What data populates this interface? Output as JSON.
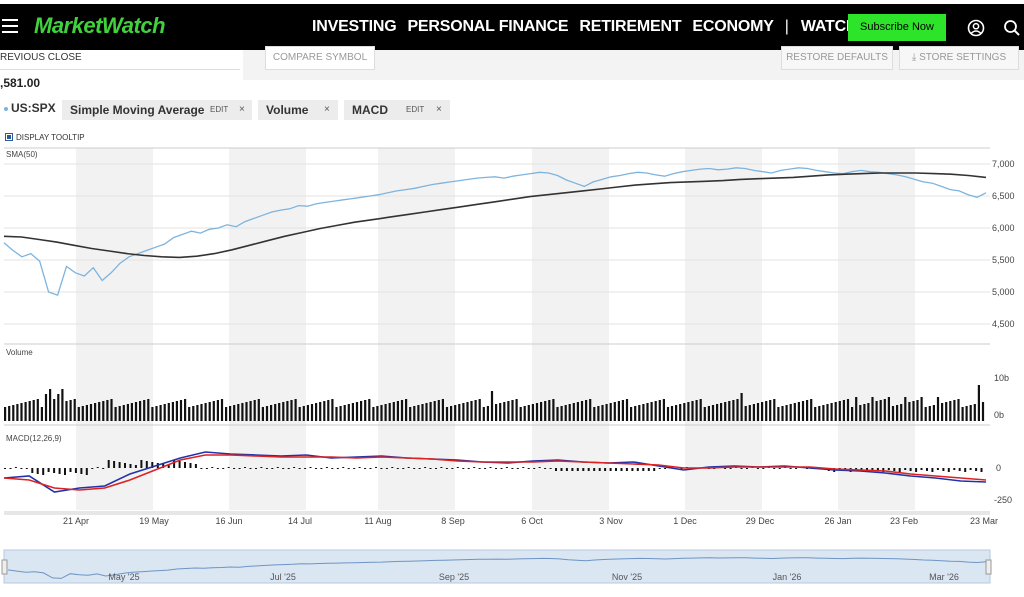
{
  "header": {
    "logo": "MarketWatch",
    "nav": [
      "INVESTING",
      "PERSONAL FINANCE",
      "RETIREMENT",
      "ECONOMY",
      "WATCHLIST"
    ],
    "nav_separator": "|",
    "subscribe": "Subscribe Now",
    "icons": [
      "menu-icon",
      "user-icon",
      "search-icon"
    ]
  },
  "quote": {
    "previous_close_label": "REVIOUS CLOSE",
    "previous_close_value": ",581.00"
  },
  "toolbar": {
    "compare": "COMPARE SYMBOL",
    "restore": "RESTORE DEFAULTS",
    "store": "STORE SETTINGS"
  },
  "legend": {
    "symbol": "US:SPX",
    "studies": [
      {
        "label": "Simple Moving Average",
        "edit": "EDIT",
        "close": "×"
      },
      {
        "label": "Volume",
        "close": "×"
      },
      {
        "label": "MACD",
        "edit": "EDIT",
        "close": "×"
      }
    ],
    "tooltip": "DISPLAY TOOLTIP"
  },
  "chart_data": {
    "type": "line",
    "panes": {
      "price": {
        "label": "SMA(50)",
        "yticks": [
          7000,
          6500,
          6000,
          5500,
          5000,
          4500
        ],
        "ytick_labels": [
          "7,000",
          "6,500",
          "6,000",
          "5,500",
          "5,000",
          "4,500"
        ],
        "ylim": [
          4250,
          7250
        ],
        "series": [
          {
            "name": "US:SPX",
            "color": "#7db4de",
            "values": [
              5770,
              5650,
              5550,
              5600,
              5480,
              5000,
              4950,
              5400,
              5300,
              5250,
              5380,
              5180,
              5300,
              5450,
              5550,
              5600,
              5650,
              5700,
              5750,
              5850,
              5900,
              5950,
              5920,
              5980,
              6000,
              6050,
              6020,
              6100,
              6150,
              6200,
              6250,
              6280,
              6300,
              6350,
              6340,
              6380,
              6400,
              6420,
              6440,
              6460,
              6480,
              6500,
              6520,
              6550,
              6580,
              6600,
              6620,
              6650,
              6680,
              6700,
              6720,
              6740,
              6760,
              6780,
              6790,
              6800,
              6780,
              6810,
              6830,
              6850,
              6870,
              6860,
              6820,
              6750,
              6700,
              6650,
              6720,
              6760,
              6800,
              6820,
              6850,
              6870,
              6860,
              6830,
              6810,
              6850,
              6880,
              6900,
              6920,
              6930,
              6910,
              6920,
              6940,
              6930,
              6900,
              6880,
              6860,
              6900,
              6920,
              6940,
              6930,
              6900,
              6880,
              6860,
              6850,
              6880,
              6900,
              6880,
              6870,
              6850,
              6830,
              6800,
              6760,
              6720,
              6700,
              6650,
              6600,
              6580,
              6520,
              6480,
              6550
            ]
          },
          {
            "name": "SMA(50)",
            "color": "#333333",
            "values": [
              5870,
              5860,
              5820,
              5780,
              5730,
              5680,
              5640,
              5600,
              5570,
              5550,
              5540,
              5560,
              5600,
              5660,
              5730,
              5800,
              5870,
              5930,
              5990,
              6040,
              6090,
              6130,
              6170,
              6210,
              6250,
              6290,
              6330,
              6370,
              6410,
              6450,
              6490,
              6520,
              6550,
              6580,
              6610,
              6640,
              6670,
              6690,
              6710,
              6720,
              6730,
              6740,
              6760,
              6770,
              6780,
              6790,
              6810,
              6830,
              6840,
              6850,
              6860,
              6860,
              6860,
              6850,
              6840,
              6820,
              6790
            ]
          }
        ]
      },
      "volume": {
        "label": "Volume",
        "yticks": [
          "10b",
          "0b"
        ]
      },
      "macd": {
        "label": "MACD(12,26,9)",
        "ytick_labels": [
          "0",
          "-250"
        ]
      }
    },
    "x_labels": [
      "21 Apr",
      "19 May",
      "16 Jun",
      "14 Jul",
      "11 Aug",
      "8 Sep",
      "6 Oct",
      "3 Nov",
      "1 Dec",
      "29 Dec",
      "26 Jan",
      "23 Feb",
      "23 Mar"
    ],
    "navigator_labels": [
      "May '25",
      "Jul '25",
      "Sep '25",
      "Nov '25",
      "Jan '26",
      "Mar '26"
    ],
    "colors": {
      "price": "#7db4de",
      "sma": "#333333",
      "macd_blue": "#2233aa",
      "macd_red": "#dd2222",
      "band": "#f2f2f2"
    }
  }
}
